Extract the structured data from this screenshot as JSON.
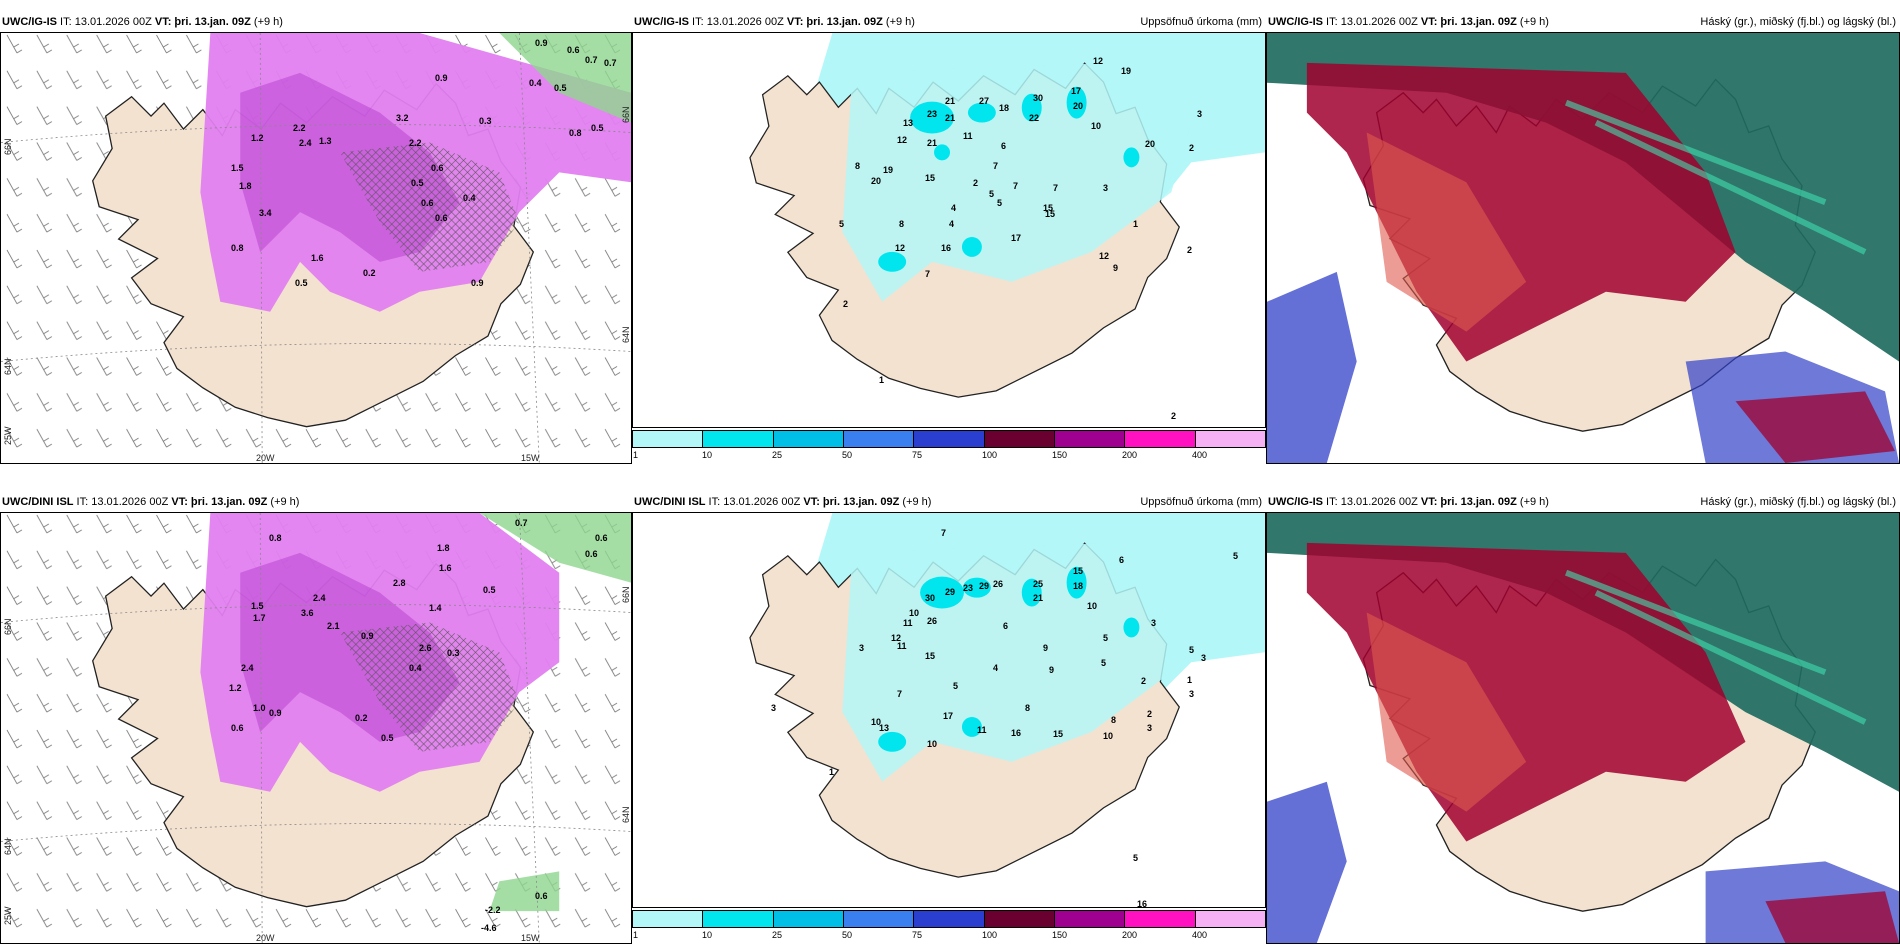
{
  "colors": {
    "land": "#f3e2d0",
    "snow": "#e27ff0",
    "snow_dark": "#a020c0",
    "rain_green": "#8fd68f",
    "precip_light": "#b3f7f8",
    "precip_cyan": "#00e5ee",
    "high_cloud": "#1f6b60",
    "mid_cloud": "#a0002e",
    "low_cloud": "#3040c8",
    "cb_colors": [
      "#b3f7f8",
      "#00e5ee",
      "#00bfe6",
      "#3a7ff0",
      "#2a3fd0",
      "#6a0030",
      "#a00090",
      "#ff10c0",
      "#f6b0f4"
    ]
  },
  "top_row": {
    "panel_left": {
      "model": "UWC/IG-IS",
      "it": " IT: 13.01.2026 00Z ",
      "vt_label": "VT:",
      "vt_value": " þri. 13.jan. 09Z",
      "lead": " (+9 h)",
      "lat_labels": [
        "66N",
        "64N",
        "66N",
        "64N"
      ],
      "lon_labels": [
        "20W",
        "15W",
        "25W"
      ],
      "values": [
        "0.9",
        "0.6",
        "0.7",
        "0.7",
        "0.4",
        "0.5",
        "0.8",
        "0.5",
        "0.9",
        "1.2",
        "2.2",
        "2.4",
        "1.3",
        "3.2",
        "0.3",
        "1.5",
        "2.2",
        "1.8",
        "0.6",
        "3.4",
        "0.8",
        "0.5",
        "0.6",
        "0.6",
        "1.6",
        "0.4",
        "0.9",
        "0.5",
        "0.2"
      ]
    },
    "panel_mid": {
      "model": "UWC/IG-IS",
      "it": " IT: 13.01.2026 00Z ",
      "vt_label": "VT:",
      "vt_value": " þri. 13.jan. 09Z",
      "lead": " (+9 h)",
      "right_title": "Uppsöfnuð úrkoma (mm)",
      "values": [
        "12",
        "19",
        "17",
        "20",
        "30",
        "22",
        "21",
        "27",
        "18",
        "23",
        "21",
        "13",
        "21",
        "11",
        "3",
        "20",
        "2",
        "12",
        "7",
        "4",
        "15",
        "10",
        "8",
        "6",
        "19",
        "20",
        "15",
        "2",
        "5",
        "7",
        "7",
        "3",
        "4",
        "5",
        "8",
        "1",
        "5",
        "16",
        "15",
        "17",
        "9",
        "12",
        "12",
        "7",
        "2",
        "2",
        "1",
        "2"
      ],
      "colorbar_ticks": [
        "1",
        "10",
        "25",
        "50",
        "75",
        "100",
        "150",
        "200",
        "400"
      ]
    },
    "panel_right": {
      "model": "UWC/IG-IS",
      "it": " IT: 13.01.2026 00Z ",
      "vt_label": "VT:",
      "vt_value": " þri. 13.jan. 09Z",
      "lead": " (+9 h)",
      "right_title": "Háský (gr.), miðský (fj.bl.) og lágský (bl.)"
    }
  },
  "bottom_row": {
    "panel_left": {
      "model": "UWC/DINI ISL",
      "it": " IT: 13.01.2026 00Z ",
      "vt_label": "VT:",
      "vt_value": " þri. 13.jan. 09Z",
      "lead": " (+9 h)",
      "lat_labels": [
        "66N",
        "64N",
        "66N",
        "64N"
      ],
      "lon_labels": [
        "20W",
        "15W",
        "25W"
      ],
      "values": [
        "0.7",
        "0.6",
        "0.6",
        "0.8",
        "1.8",
        "2.8",
        "1.6",
        "1.5",
        "2.4",
        "3.6",
        "2.1",
        "1.4",
        "0.9",
        "1.7",
        "0.5",
        "2.6",
        "0.3",
        "0.4",
        "1.2",
        "1.0",
        "0.9",
        "2.4",
        "0.6",
        "0.5",
        "0.2",
        "-2.2",
        "-4.6",
        "0.6"
      ]
    },
    "panel_mid": {
      "model": "UWC/DINI ISL",
      "it": " IT: 13.01.2026 00Z ",
      "vt_label": "VT:",
      "vt_value": " þri. 13.jan. 09Z",
      "lead": " (+9 h)",
      "right_title": "Uppsöfnuð úrkoma (mm)",
      "values": [
        "7",
        "5",
        "15",
        "18",
        "6",
        "25",
        "21",
        "30",
        "29",
        "23",
        "29",
        "26",
        "11",
        "10",
        "10",
        "11",
        "3",
        "12",
        "26",
        "15",
        "6",
        "9",
        "4",
        "5",
        "3",
        "5",
        "3",
        "9",
        "5",
        "2",
        "7",
        "5",
        "8",
        "3",
        "17",
        "11",
        "16",
        "15",
        "10",
        "8",
        "13",
        "10",
        "10",
        "1",
        "2",
        "3",
        "5",
        "16",
        "3",
        "1"
      ],
      "colorbar_ticks": [
        "1",
        "10",
        "25",
        "50",
        "75",
        "100",
        "150",
        "200",
        "400"
      ]
    },
    "panel_right": {
      "model": "UWC/IG-IS",
      "it": " IT: 13.01.2026 00Z ",
      "vt_label": "VT:",
      "vt_value": " þri. 13.jan. 09Z",
      "lead": " (+9 h)",
      "right_title": "Háský (gr.), miðský (fj.bl.) og lágský (bl.)"
    }
  }
}
